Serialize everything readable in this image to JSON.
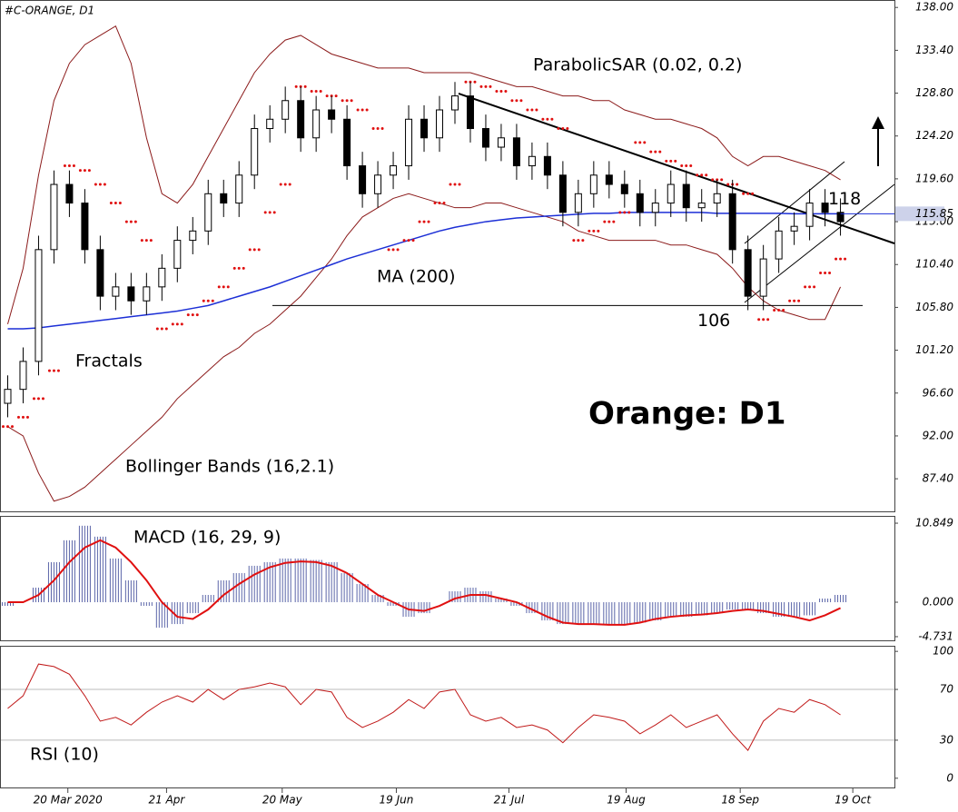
{
  "chart_data": [
    {
      "type": "candlestick",
      "title": "#C-ORANGE, D1",
      "headline": "Orange: D1",
      "fractals_label": "Fractals",
      "open": [
        95.5,
        97,
        100,
        112,
        119,
        117,
        112,
        107,
        108,
        106.5,
        108,
        110,
        113,
        114,
        118,
        117,
        120,
        125,
        126,
        128,
        124,
        127,
        126,
        121,
        118,
        120,
        121,
        126,
        124,
        127,
        128.5,
        125,
        123,
        124,
        121,
        122,
        120,
        116,
        118,
        120,
        119,
        118,
        116,
        117,
        119,
        116.5,
        117,
        118,
        112,
        107,
        111,
        114,
        114.5,
        117,
        116
      ],
      "high": [
        98.5,
        101.5,
        113.5,
        120.5,
        120.5,
        118.5,
        113.5,
        109.5,
        109.5,
        109.5,
        111.5,
        114.5,
        115.5,
        119.5,
        119.5,
        121.5,
        126.5,
        127.5,
        129.5,
        129.5,
        128.5,
        128.5,
        127.5,
        122.5,
        121.5,
        122.5,
        127.5,
        127.5,
        128.5,
        130,
        130,
        126.5,
        125.5,
        125.5,
        123.5,
        123.5,
        121.5,
        119.5,
        121.5,
        121.5,
        120.5,
        119.5,
        118.5,
        120.5,
        120.5,
        118.5,
        119.5,
        119.5,
        113.5,
        112.5,
        115.5,
        116,
        118.5,
        118.5,
        117.5
      ],
      "low": [
        94,
        95.5,
        98.5,
        110.5,
        115.5,
        110.5,
        105.5,
        105.5,
        105,
        105,
        106.5,
        108.5,
        111.5,
        112.5,
        115.5,
        115.5,
        118.5,
        123.5,
        124.5,
        122.5,
        122.5,
        124.5,
        119.5,
        116.5,
        116.5,
        118.5,
        119.5,
        122.5,
        122.5,
        125.5,
        123.5,
        121.5,
        121.5,
        119.5,
        119.5,
        118.5,
        114.5,
        114.5,
        116.5,
        117.5,
        116.5,
        114.5,
        114.5,
        115.5,
        115,
        115,
        115.5,
        110.5,
        105.5,
        105.5,
        109.5,
        112.5,
        113,
        114.5,
        113.5
      ],
      "close": [
        97,
        100,
        112,
        119,
        117,
        112,
        107,
        108,
        106.5,
        108,
        110,
        113,
        114,
        118,
        117,
        120,
        125,
        126,
        128,
        124,
        127,
        126,
        121,
        118,
        120,
        121,
        126,
        124,
        127,
        128.5,
        125,
        123,
        124,
        121,
        122,
        120,
        116,
        118,
        120,
        119,
        118,
        116,
        117,
        119,
        116.5,
        117,
        118,
        112,
        107,
        111,
        114,
        114.5,
        117,
        116,
        115
      ],
      "ma": {
        "name": "MA (200)",
        "color": "#1c2fd6",
        "values": [
          103.5,
          103.5,
          103.6,
          103.8,
          104,
          104.2,
          104.4,
          104.6,
          104.8,
          105,
          105.2,
          105.4,
          105.7,
          106,
          106.5,
          107,
          107.5,
          108,
          108.6,
          109.2,
          109.8,
          110.4,
          111,
          111.5,
          112,
          112.5,
          113,
          113.5,
          114,
          114.4,
          114.7,
          115,
          115.2,
          115.4,
          115.5,
          115.6,
          115.7,
          115.8,
          115.9,
          115.9,
          116,
          116,
          116,
          116,
          116,
          116,
          115.9,
          115.9,
          115.9,
          115.9,
          115.9,
          115.85,
          115.85,
          115.85,
          115.85
        ]
      },
      "bollinger": {
        "name": "Bollinger Bands (16,2.1)",
        "color": "#8b1a1a",
        "upper": [
          104,
          110,
          120,
          128,
          132,
          134,
          135,
          136,
          132,
          124,
          118,
          117,
          119,
          122,
          125,
          128,
          131,
          133,
          134.5,
          135,
          134,
          133,
          132.5,
          132,
          131.5,
          131.5,
          131.5,
          131,
          131,
          131,
          131,
          130.5,
          130,
          129.5,
          129.5,
          129,
          128.5,
          128.5,
          128,
          128,
          127,
          126.5,
          126,
          126,
          125.5,
          125,
          124,
          122,
          121,
          122,
          122,
          121.5,
          121,
          120.5,
          119.5
        ],
        "lower": [
          93,
          92,
          88,
          85,
          85.5,
          86.5,
          88,
          89.5,
          91,
          92.5,
          94,
          96,
          97.5,
          99,
          100.5,
          101.5,
          103,
          104,
          105.5,
          107,
          109,
          111,
          113.5,
          115.5,
          116.5,
          117.5,
          118,
          117.5,
          117,
          116.5,
          116.5,
          117,
          117,
          116.5,
          116,
          115.5,
          115,
          114,
          113.5,
          113,
          113,
          113,
          113,
          112.5,
          112.5,
          112,
          111.5,
          110,
          108,
          106.5,
          105.5,
          105,
          104.5,
          104.5,
          108
        ]
      },
      "sar": {
        "name": "ParabolicSAR (0.02, 0.2)",
        "color": "#e01010",
        "values": [
          93,
          94,
          96,
          99,
          121,
          120.5,
          119,
          117,
          115,
          113,
          103.5,
          104,
          105,
          106.5,
          108,
          110,
          112,
          116,
          119,
          129.5,
          129,
          128.5,
          128,
          127,
          125,
          112,
          113,
          115,
          117,
          119,
          130,
          129.5,
          129,
          128,
          127,
          126,
          125,
          113,
          114,
          115,
          116,
          123.5,
          122.5,
          121.5,
          121,
          120,
          119.5,
          119,
          118,
          104.5,
          105.5,
          106.5,
          108,
          109.5,
          111
        ]
      },
      "levels": [
        118,
        106
      ],
      "last_price": 115.85,
      "xlim": [
        -0.5,
        57.5
      ],
      "ylim": [
        83.9,
        138.8
      ],
      "yticks": [
        {
          "value": 138,
          "label": "138.00"
        },
        {
          "value": 133.4,
          "label": "133.40"
        },
        {
          "value": 128.8,
          "label": "128.80"
        },
        {
          "value": 124.2,
          "label": "124.20"
        },
        {
          "value": 119.6,
          "label": "119.60"
        },
        {
          "value": 115,
          "label": "115.00"
        },
        {
          "value": 110.4,
          "label": "110.40"
        },
        {
          "value": 105.8,
          "label": "105.80"
        },
        {
          "value": 101.2,
          "label": "101.20"
        },
        {
          "value": 96.6,
          "label": "96.60"
        },
        {
          "value": 92,
          "label": "92.00"
        },
        {
          "value": 87.4,
          "label": "87.40"
        }
      ]
    },
    {
      "type": "macd",
      "title": "MACD (16, 29, 9)",
      "xlim": [
        -0.5,
        57.5
      ],
      "ylim": [
        -5.36,
        11.85
      ],
      "yticks": [
        10.849,
        {
          "value": 0,
          "label": "0.000"
        },
        -4.731
      ],
      "series": [
        {
          "name": "histogram",
          "color": "#5a64a8",
          "values": [
            -0.5,
            0,
            2,
            5.5,
            8.5,
            10.5,
            9,
            6,
            3,
            -0.5,
            -3.5,
            -3,
            -1.5,
            1,
            3,
            4,
            5,
            5.5,
            6,
            6,
            5.8,
            5.5,
            4,
            2.5,
            1,
            -0.5,
            -2,
            -1.5,
            0,
            1.5,
            2,
            1.5,
            0.5,
            -0.5,
            -1.5,
            -2.5,
            -3,
            -3,
            -3,
            -3,
            -3,
            -2.8,
            -2.5,
            -2,
            -2,
            -1.8,
            -1.5,
            -1,
            -1,
            -1.5,
            -2,
            -2,
            -1.8,
            0.5,
            1
          ]
        },
        {
          "name": "signal",
          "color": "#e01010",
          "values": [
            0,
            0,
            1,
            3,
            5.5,
            7.5,
            8.5,
            7.5,
            5.5,
            3,
            0,
            -2,
            -2.3,
            -1,
            1,
            2.5,
            3.8,
            4.8,
            5.4,
            5.6,
            5.5,
            5,
            4,
            2.5,
            1,
            0,
            -1,
            -1.2,
            -0.5,
            0.5,
            1,
            1,
            0.5,
            0,
            -1,
            -2,
            -2.8,
            -3,
            -3,
            -3.1,
            -3.1,
            -2.8,
            -2.3,
            -2,
            -1.8,
            -1.7,
            -1.5,
            -1.2,
            -1,
            -1.2,
            -1.6,
            -2,
            -2.5,
            -1.8,
            -0.8
          ]
        }
      ]
    },
    {
      "type": "line",
      "title": "RSI (10)",
      "color": "#c01818",
      "xlim": [
        -0.5,
        57.5
      ],
      "ylim": [
        -8,
        104.4
      ],
      "yticks": [
        100,
        70,
        30,
        0
      ],
      "values": [
        55,
        65,
        90,
        88,
        82,
        65,
        45,
        48,
        42,
        52,
        60,
        65,
        60,
        70,
        62,
        70,
        72,
        75,
        72,
        58,
        70,
        68,
        48,
        40,
        45,
        52,
        62,
        55,
        68,
        70,
        50,
        45,
        48,
        40,
        42,
        38,
        28,
        40,
        50,
        48,
        45,
        35,
        42,
        50,
        40,
        45,
        50,
        35,
        22,
        45,
        55,
        52,
        62,
        58,
        50
      ],
      "xticks": [
        {
          "value": 3.9,
          "label": "20 Mar 2020"
        },
        {
          "value": 10.3,
          "label": "21 Apr"
        },
        {
          "value": 17.8,
          "label": "20 May"
        },
        {
          "value": 25.2,
          "label": "19 Jun"
        },
        {
          "value": 32.5,
          "label": "21 Jul"
        },
        {
          "value": 40.1,
          "label": "19 Aug"
        },
        {
          "value": 47.5,
          "label": "18 Sep"
        },
        {
          "value": 54.8,
          "label": "19 Oct"
        }
      ]
    }
  ]
}
